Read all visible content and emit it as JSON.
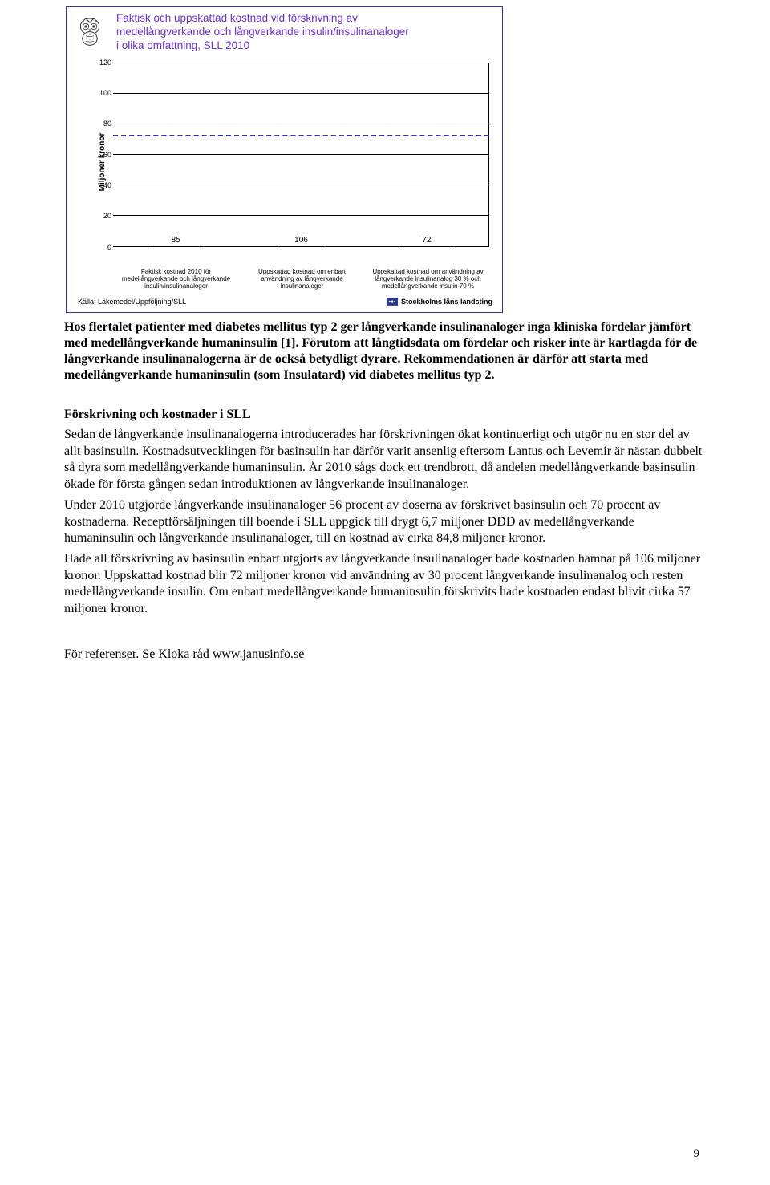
{
  "chart": {
    "type": "bar",
    "title_lines": [
      "Faktisk och uppskattad kostnad vid förskrivning av",
      "medellångverkande och långverkande insulin/insulinanaloger",
      "i olika omfattning, SLL 2010"
    ],
    "title_color": "#6633cc",
    "title_fontsize": 13.5,
    "ylabel": "Miljoner kronor",
    "ylabel_fontsize": 10,
    "ylim": [
      0,
      120
    ],
    "ytick_step": 20,
    "yticks": [
      0,
      20,
      40,
      60,
      80,
      100,
      120
    ],
    "categories": [
      "Faktisk kostnad 2010 för medellångverkande och långverkande insulin/insulinanaloger",
      "Uppskattad kostnad om enbart användning av långverkande insulinanaloger",
      "Uppskattad kostnad om användning av långverkande insulinanalog 30 % och medellångverkande insulin 70 %"
    ],
    "values": [
      85,
      106,
      72
    ],
    "bar_colors": [
      "#ff9900",
      "#ff0000",
      "#008000"
    ],
    "bar_width_pct": 14,
    "plot_border_color": "#000000",
    "grid_color": "#000000",
    "horizontal_dash_value": 72,
    "horizontal_dash_color": "#333399",
    "background_color": "#ffffff",
    "frame_border_color": "#333399",
    "source_label": "Källa: Läkemedel/Uppföljning/SLL",
    "logo_label": "Stockholms läns landsting",
    "logo_color": "#2a3b8f"
  },
  "paragraphs": {
    "bold_summary": "Hos flertalet patienter med diabetes mellitus typ 2 ger långverkande insulinanaloger inga kliniska fördelar jämfört med medellångverkande humaninsulin [1]. Förutom att långtidsdata om fördelar och risker inte är kartlagda för de långverkande insulinanalogerna är de också betydligt dyrare. Rekommendationen är därför att starta med medellångverkande humaninsulin (som Insulatard) vid diabetes mellitus typ 2.",
    "subhead": "Förskrivning och kostnader i SLL",
    "p1": "Sedan de långverkande insulinanalogerna introducerades har förskrivningen ökat kontinuerligt och utgör nu en stor del av allt basinsulin. Kostnadsutvecklingen för basinsulin har därför varit ansenlig eftersom Lantus och Levemir är nästan dubbelt så dyra som medellångverkande humaninsulin. År 2010 sågs dock ett trendbrott, då andelen medellångverkande basinsulin ökade för första gången sedan introduktionen av långverkande insulinanaloger.",
    "p2": "Under 2010 utgjorde långverkande insulinanaloger 56 procent av doserna av förskrivet basinsulin och 70 procent av kostnaderna. Receptförsäljningen till boende i SLL uppgick till drygt 6,7 miljoner DDD av medellångverkande humaninsulin och långverkande insulinanaloger, till en kostnad av cirka 84,8 miljoner kronor.",
    "p3": "Hade all förskrivning av basinsulin enbart utgjorts av långverkande insulinanaloger hade kostnaden hamnat på 106 miljoner kronor. Uppskattad kostnad blir 72 miljoner kronor vid användning av 30 procent långverkande insulinanalog och resten medellångverkande insulin. Om enbart medellångverkande humaninsulin förskrivits hade kostnaden endast blivit cirka 57 miljoner kronor.",
    "ref": "För referenser. Se Kloka råd www.janusinfo.se"
  },
  "page_number": "9"
}
